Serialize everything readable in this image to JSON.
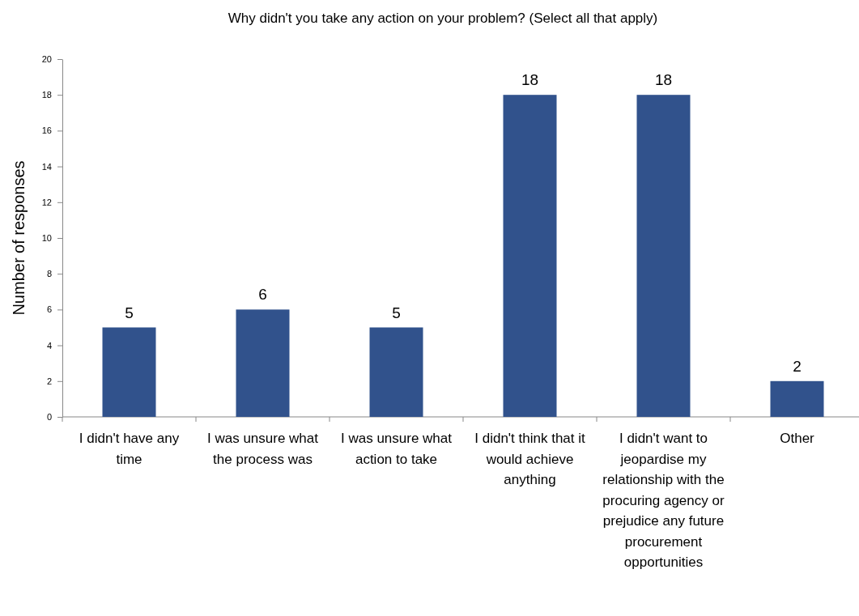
{
  "chart_data": {
    "type": "bar",
    "title": "Why didn't you take any action on your problem? (Select all that apply)",
    "ylabel": "Number of responses",
    "categories": [
      "I didn't have any time",
      "I was unsure what the process was",
      "I was unsure what action to take",
      "I didn't think that it would achieve anything",
      "I didn't want to jeopardise my relationship with the procuring agency or prejudice any future procurement opportunities",
      "Other"
    ],
    "values": [
      5,
      6,
      5,
      18,
      18,
      2
    ],
    "color": "#31528c",
    "ylim": [
      0,
      20
    ],
    "yticks": [
      0,
      2,
      4,
      6,
      8,
      10,
      12,
      14,
      16,
      18,
      20
    ],
    "data_labels": true
  }
}
